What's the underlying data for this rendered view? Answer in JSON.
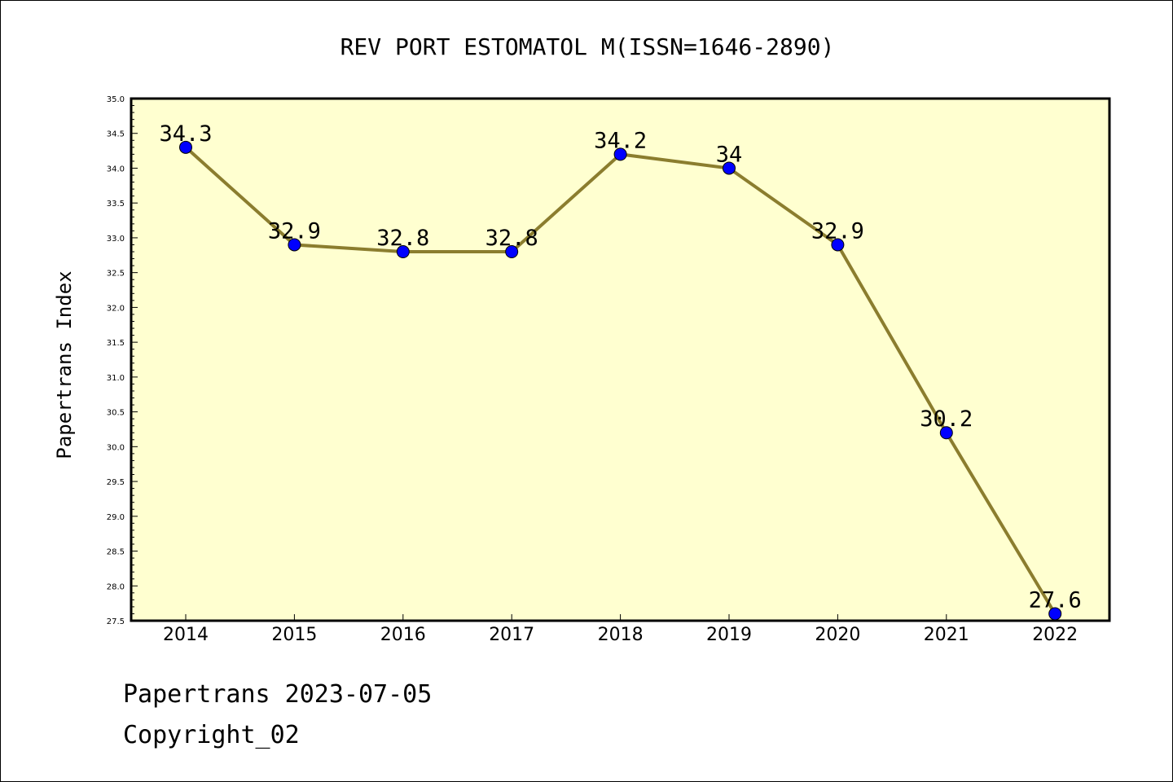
{
  "chart_data": {
    "type": "line",
    "title": "REV PORT ESTOMATOL M(ISSN=1646-2890)",
    "xlabel": "",
    "ylabel": "Papertrans Index",
    "categories": [
      "2014",
      "2015",
      "2016",
      "2017",
      "2018",
      "2019",
      "2020",
      "2021",
      "2022"
    ],
    "series": [
      {
        "values": [
          34.3,
          32.9,
          32.8,
          32.8,
          34.2,
          34.0,
          32.9,
          30.2,
          27.6
        ],
        "data_labels": [
          "34.3",
          "32.9",
          "32.8",
          "32.8",
          "34.2",
          "34",
          "32.9",
          "30.2",
          "27.6"
        ]
      }
    ],
    "ylim": [
      27.5,
      35.0
    ],
    "y_ticks": [
      "27.5",
      "28.0",
      "28.5",
      "29.0",
      "29.5",
      "30.0",
      "30.5",
      "31.0",
      "31.5",
      "32.0",
      "32.5",
      "33.0",
      "33.5",
      "34.0",
      "34.5",
      "35.0"
    ],
    "grid": false,
    "colors": {
      "line": "#8b7d2e",
      "marker": "#0000ff",
      "plot_background": "#ffffd0"
    }
  },
  "footer": {
    "line1": "Papertrans 2023-07-05",
    "line2": "Copyright_02"
  }
}
